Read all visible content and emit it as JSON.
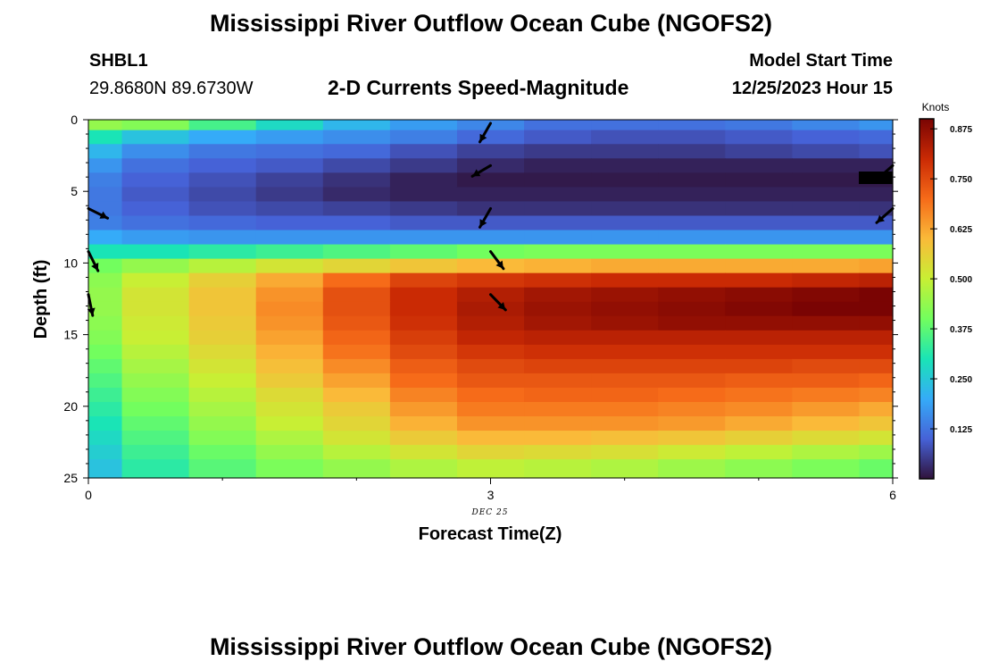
{
  "header": {
    "main_title": "Mississippi River Outflow Ocean Cube (NGOFS2)",
    "footer_title": "Mississippi River Outflow Ocean Cube (NGOFS2)",
    "station_id": "SHBL1",
    "station_coords": "29.8680N  89.6730W",
    "plot_title": "2-D Currents Speed-Magnitude",
    "model_start_label": "Model Start Time",
    "model_start_value": "12/25/2023 Hour 15"
  },
  "colors": {
    "colormap": [
      "#30123b",
      "#4662d7",
      "#35abf8",
      "#1ae4b6",
      "#72fe5e",
      "#c8ef34",
      "#faba39",
      "#f66b19",
      "#ca2a04",
      "#7a0403"
    ],
    "arrow": "#000000",
    "axis": "#000000"
  },
  "chart_data": {
    "type": "heatmap",
    "title": "2-D Currents Speed-Magnitude",
    "xlabel": "Forecast Time(Z)",
    "ylabel": "Depth (ft)",
    "x_date_label": "DEC 25",
    "xlim": [
      0,
      6
    ],
    "ylim": [
      25,
      0
    ],
    "x_ticks": [
      0,
      3,
      6
    ],
    "y_ticks": [
      0,
      5,
      10,
      15,
      20,
      25
    ],
    "colorbar": {
      "label": "Knots",
      "range": [
        0,
        0.9
      ],
      "ticks": [
        "0.125",
        "0.250",
        "0.375",
        "0.500",
        "0.625",
        "0.750",
        "0.875"
      ],
      "tick_values": [
        0.125,
        0.25,
        0.375,
        0.5,
        0.625,
        0.75,
        0.875
      ]
    },
    "x_centers": [
      0,
      0.5,
      1,
      1.5,
      2,
      2.5,
      3,
      3.5,
      4,
      4.5,
      5,
      5.5,
      6
    ],
    "depths": [
      0.25,
      1.2,
      2.2,
      3.2,
      4.2,
      5.2,
      6.2,
      7.2,
      8.2,
      9.2,
      10.2,
      11.2,
      12.2,
      13.2,
      14.2,
      15.2,
      16.2,
      17.2,
      18.2,
      19.2,
      20.2,
      21.2,
      22.2,
      23.2,
      24.2
    ],
    "speed": [
      [
        0.44,
        0.42,
        0.35,
        0.28,
        0.22,
        0.18,
        0.15,
        0.12,
        0.12,
        0.12,
        0.13,
        0.15,
        0.17
      ],
      [
        0.3,
        0.24,
        0.2,
        0.18,
        0.16,
        0.14,
        0.11,
        0.09,
        0.08,
        0.08,
        0.09,
        0.1,
        0.11
      ],
      [
        0.22,
        0.16,
        0.13,
        0.12,
        0.11,
        0.08,
        0.06,
        0.05,
        0.05,
        0.05,
        0.06,
        0.07,
        0.08
      ],
      [
        0.17,
        0.12,
        0.1,
        0.09,
        0.07,
        0.05,
        0.03,
        0.02,
        0.02,
        0.02,
        0.02,
        0.02,
        0.02
      ],
      [
        0.14,
        0.1,
        0.08,
        0.06,
        0.04,
        0.02,
        0.01,
        0.01,
        0.01,
        0.01,
        0.01,
        0.01,
        0.01
      ],
      [
        0.13,
        0.09,
        0.07,
        0.05,
        0.03,
        0.02,
        0.02,
        0.02,
        0.02,
        0.02,
        0.02,
        0.02,
        0.02
      ],
      [
        0.13,
        0.1,
        0.08,
        0.07,
        0.06,
        0.05,
        0.04,
        0.04,
        0.04,
        0.04,
        0.04,
        0.04,
        0.04
      ],
      [
        0.14,
        0.12,
        0.11,
        0.1,
        0.1,
        0.09,
        0.09,
        0.09,
        0.09,
        0.09,
        0.09,
        0.09,
        0.09
      ],
      [
        0.2,
        0.18,
        0.17,
        0.17,
        0.17,
        0.17,
        0.17,
        0.17,
        0.17,
        0.17,
        0.17,
        0.17,
        0.17
      ],
      [
        0.3,
        0.3,
        0.32,
        0.34,
        0.36,
        0.38,
        0.4,
        0.41,
        0.41,
        0.41,
        0.41,
        0.41,
        0.41
      ],
      [
        0.4,
        0.44,
        0.48,
        0.52,
        0.55,
        0.58,
        0.6,
        0.61,
        0.62,
        0.62,
        0.62,
        0.62,
        0.63
      ],
      [
        0.43,
        0.5,
        0.56,
        0.62,
        0.7,
        0.76,
        0.78,
        0.79,
        0.8,
        0.8,
        0.8,
        0.81,
        0.82
      ],
      [
        0.44,
        0.52,
        0.58,
        0.65,
        0.74,
        0.8,
        0.83,
        0.85,
        0.86,
        0.87,
        0.88,
        0.89,
        0.9
      ],
      [
        0.44,
        0.52,
        0.58,
        0.66,
        0.74,
        0.8,
        0.84,
        0.86,
        0.87,
        0.88,
        0.89,
        0.9,
        0.9
      ],
      [
        0.43,
        0.51,
        0.57,
        0.65,
        0.73,
        0.79,
        0.83,
        0.85,
        0.86,
        0.87,
        0.87,
        0.87,
        0.87
      ],
      [
        0.42,
        0.5,
        0.56,
        0.63,
        0.71,
        0.77,
        0.81,
        0.82,
        0.82,
        0.82,
        0.82,
        0.82,
        0.82
      ],
      [
        0.4,
        0.48,
        0.54,
        0.61,
        0.69,
        0.75,
        0.78,
        0.79,
        0.79,
        0.79,
        0.79,
        0.79,
        0.79
      ],
      [
        0.38,
        0.46,
        0.52,
        0.59,
        0.66,
        0.72,
        0.75,
        0.76,
        0.76,
        0.76,
        0.76,
        0.75,
        0.75
      ],
      [
        0.36,
        0.44,
        0.5,
        0.57,
        0.63,
        0.7,
        0.73,
        0.73,
        0.73,
        0.73,
        0.72,
        0.72,
        0.71
      ],
      [
        0.34,
        0.42,
        0.48,
        0.54,
        0.6,
        0.67,
        0.7,
        0.71,
        0.71,
        0.7,
        0.69,
        0.68,
        0.67
      ],
      [
        0.32,
        0.4,
        0.46,
        0.52,
        0.57,
        0.64,
        0.68,
        0.68,
        0.68,
        0.67,
        0.66,
        0.64,
        0.62
      ],
      [
        0.3,
        0.38,
        0.44,
        0.5,
        0.55,
        0.61,
        0.65,
        0.65,
        0.65,
        0.64,
        0.62,
        0.6,
        0.58
      ],
      [
        0.28,
        0.36,
        0.42,
        0.47,
        0.52,
        0.57,
        0.6,
        0.6,
        0.59,
        0.58,
        0.56,
        0.54,
        0.52
      ],
      [
        0.26,
        0.34,
        0.39,
        0.44,
        0.48,
        0.52,
        0.55,
        0.54,
        0.53,
        0.51,
        0.49,
        0.47,
        0.45
      ],
      [
        0.24,
        0.32,
        0.37,
        0.41,
        0.44,
        0.47,
        0.49,
        0.48,
        0.47,
        0.45,
        0.43,
        0.41,
        0.39
      ]
    ],
    "vectors": [
      {
        "time": 0,
        "depth": 6.2,
        "u": 0.9,
        "v": -0.45
      },
      {
        "time": 0,
        "depth": 9.2,
        "u": 0.45,
        "v": -0.9
      },
      {
        "time": 0,
        "depth": 12.2,
        "u": 0.2,
        "v": -0.98
      },
      {
        "time": 3,
        "depth": 0.25,
        "u": -0.5,
        "v": -0.87
      },
      {
        "time": 3,
        "depth": 3.2,
        "u": -0.85,
        "v": -0.5
      },
      {
        "time": 3,
        "depth": 6.2,
        "u": -0.5,
        "v": -0.87
      },
      {
        "time": 3,
        "depth": 9.2,
        "u": 0.6,
        "v": -0.8
      },
      {
        "time": 3,
        "depth": 12.2,
        "u": 0.7,
        "v": -0.72
      },
      {
        "time": 6,
        "depth": 3.2,
        "u": -0.75,
        "v": -0.66
      },
      {
        "time": 6,
        "depth": 6.2,
        "u": -0.75,
        "v": -0.66
      }
    ]
  }
}
